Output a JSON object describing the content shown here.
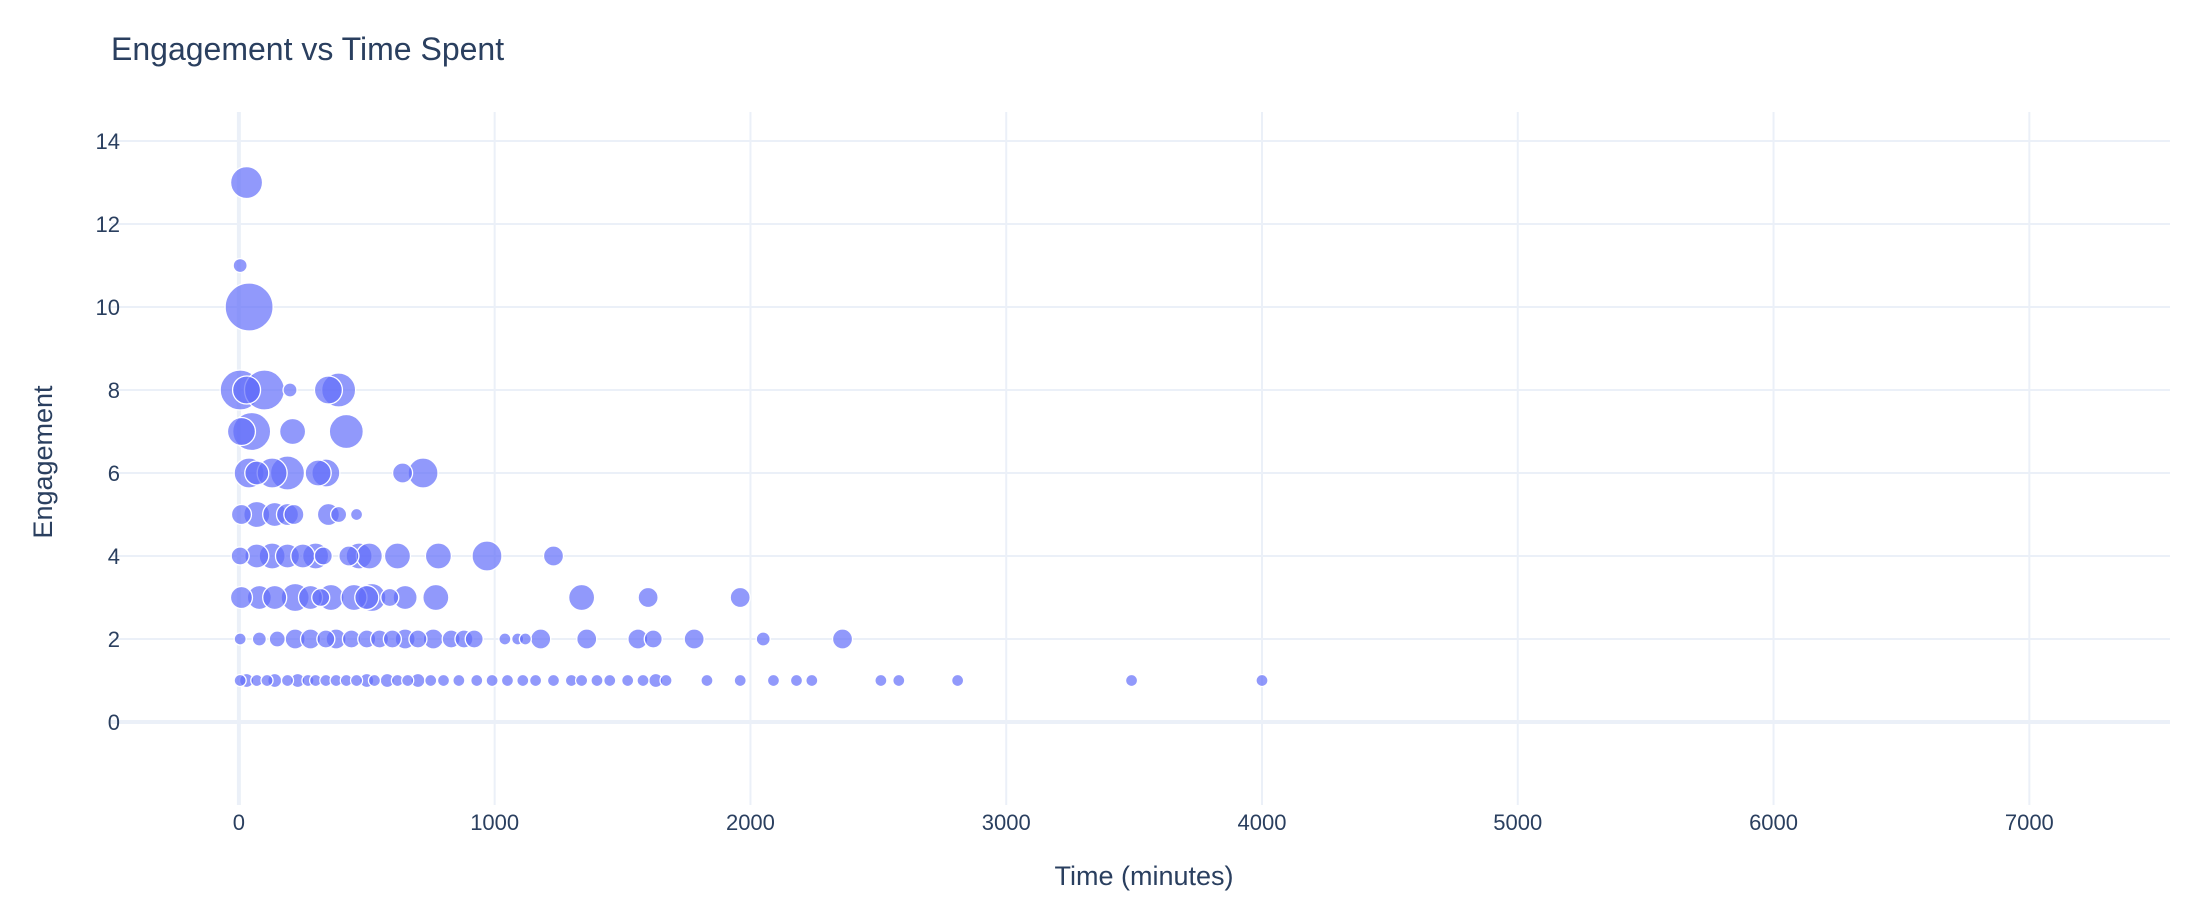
{
  "colors": {
    "marker": "#636efa",
    "grid": "#ebf0f8",
    "text": "#2a3f5f",
    "background": "#ffffff"
  },
  "chart_data": {
    "type": "scatter",
    "variant": "bubble",
    "title": "Engagement vs Time Spent",
    "xlabel": "Time (minutes)",
    "ylabel": "Engagement",
    "xlim": [
      -500,
      7550
    ],
    "ylim": [
      -2,
      14.7
    ],
    "xticks": [
      0,
      1000,
      2000,
      3000,
      4000,
      5000,
      6000,
      7000
    ],
    "yticks": [
      0,
      2,
      4,
      6,
      8,
      10,
      12,
      14
    ],
    "grid": true,
    "legend": "none",
    "points": [
      {
        "x": 30,
        "y": 13,
        "size": 16
      },
      {
        "x": 5,
        "y": 11,
        "size": 7
      },
      {
        "x": 40,
        "y": 10,
        "size": 24
      },
      {
        "x": 5,
        "y": 8,
        "size": 20
      },
      {
        "x": 30,
        "y": 8,
        "size": 14
      },
      {
        "x": 100,
        "y": 8,
        "size": 20
      },
      {
        "x": 200,
        "y": 8,
        "size": 7
      },
      {
        "x": 350,
        "y": 8,
        "size": 14
      },
      {
        "x": 390,
        "y": 8,
        "size": 17
      },
      {
        "x": 10,
        "y": 7,
        "size": 14
      },
      {
        "x": 50,
        "y": 7,
        "size": 19
      },
      {
        "x": 210,
        "y": 7,
        "size": 13
      },
      {
        "x": 420,
        "y": 7,
        "size": 17
      },
      {
        "x": 40,
        "y": 6,
        "size": 15
      },
      {
        "x": 70,
        "y": 6,
        "size": 12
      },
      {
        "x": 130,
        "y": 6,
        "size": 15
      },
      {
        "x": 190,
        "y": 6,
        "size": 17
      },
      {
        "x": 310,
        "y": 6,
        "size": 13
      },
      {
        "x": 340,
        "y": 6,
        "size": 14
      },
      {
        "x": 640,
        "y": 6,
        "size": 10
      },
      {
        "x": 720,
        "y": 6,
        "size": 15
      },
      {
        "x": 10,
        "y": 5,
        "size": 10
      },
      {
        "x": 70,
        "y": 5,
        "size": 13
      },
      {
        "x": 140,
        "y": 5,
        "size": 12
      },
      {
        "x": 190,
        "y": 5,
        "size": 11
      },
      {
        "x": 215,
        "y": 5,
        "size": 10
      },
      {
        "x": 350,
        "y": 5,
        "size": 11
      },
      {
        "x": 390,
        "y": 5,
        "size": 8
      },
      {
        "x": 460,
        "y": 5,
        "size": 6
      },
      {
        "x": 5,
        "y": 4,
        "size": 9
      },
      {
        "x": 70,
        "y": 4,
        "size": 12
      },
      {
        "x": 130,
        "y": 4,
        "size": 13
      },
      {
        "x": 190,
        "y": 4,
        "size": 12
      },
      {
        "x": 250,
        "y": 4,
        "size": 12
      },
      {
        "x": 300,
        "y": 4,
        "size": 13
      },
      {
        "x": 330,
        "y": 4,
        "size": 9
      },
      {
        "x": 430,
        "y": 4,
        "size": 10
      },
      {
        "x": 470,
        "y": 4,
        "size": 13
      },
      {
        "x": 510,
        "y": 4,
        "size": 13
      },
      {
        "x": 620,
        "y": 4,
        "size": 13
      },
      {
        "x": 780,
        "y": 4,
        "size": 13
      },
      {
        "x": 970,
        "y": 4,
        "size": 15
      },
      {
        "x": 1230,
        "y": 4,
        "size": 10
      },
      {
        "x": 10,
        "y": 3,
        "size": 11
      },
      {
        "x": 80,
        "y": 3,
        "size": 12
      },
      {
        "x": 140,
        "y": 3,
        "size": 12
      },
      {
        "x": 220,
        "y": 3,
        "size": 14
      },
      {
        "x": 280,
        "y": 3,
        "size": 12
      },
      {
        "x": 320,
        "y": 3,
        "size": 9
      },
      {
        "x": 360,
        "y": 3,
        "size": 13
      },
      {
        "x": 450,
        "y": 3,
        "size": 13
      },
      {
        "x": 500,
        "y": 3,
        "size": 12
      },
      {
        "x": 520,
        "y": 3,
        "size": 14
      },
      {
        "x": 590,
        "y": 3,
        "size": 9
      },
      {
        "x": 650,
        "y": 3,
        "size": 12
      },
      {
        "x": 770,
        "y": 3,
        "size": 13
      },
      {
        "x": 1340,
        "y": 3,
        "size": 13
      },
      {
        "x": 1600,
        "y": 3,
        "size": 10
      },
      {
        "x": 1960,
        "y": 3,
        "size": 10
      },
      {
        "x": 5,
        "y": 2,
        "size": 6
      },
      {
        "x": 80,
        "y": 2,
        "size": 7
      },
      {
        "x": 150,
        "y": 2,
        "size": 8
      },
      {
        "x": 220,
        "y": 2,
        "size": 10
      },
      {
        "x": 280,
        "y": 2,
        "size": 10
      },
      {
        "x": 340,
        "y": 2,
        "size": 9
      },
      {
        "x": 380,
        "y": 2,
        "size": 10
      },
      {
        "x": 440,
        "y": 2,
        "size": 9
      },
      {
        "x": 500,
        "y": 2,
        "size": 9
      },
      {
        "x": 550,
        "y": 2,
        "size": 9
      },
      {
        "x": 600,
        "y": 2,
        "size": 9
      },
      {
        "x": 650,
        "y": 2,
        "size": 10
      },
      {
        "x": 700,
        "y": 2,
        "size": 9
      },
      {
        "x": 760,
        "y": 2,
        "size": 10
      },
      {
        "x": 830,
        "y": 2,
        "size": 9
      },
      {
        "x": 880,
        "y": 2,
        "size": 9
      },
      {
        "x": 920,
        "y": 2,
        "size": 9
      },
      {
        "x": 1040,
        "y": 2,
        "size": 6
      },
      {
        "x": 1090,
        "y": 2,
        "size": 6
      },
      {
        "x": 1120,
        "y": 2,
        "size": 6
      },
      {
        "x": 1180,
        "y": 2,
        "size": 10
      },
      {
        "x": 1360,
        "y": 2,
        "size": 10
      },
      {
        "x": 1560,
        "y": 2,
        "size": 10
      },
      {
        "x": 1620,
        "y": 2,
        "size": 9
      },
      {
        "x": 1780,
        "y": 2,
        "size": 10
      },
      {
        "x": 2050,
        "y": 2,
        "size": 7
      },
      {
        "x": 2360,
        "y": 2,
        "size": 10
      },
      {
        "x": 5,
        "y": 1,
        "size": 6
      },
      {
        "x": 30,
        "y": 1,
        "size": 7
      },
      {
        "x": 70,
        "y": 1,
        "size": 6
      },
      {
        "x": 110,
        "y": 1,
        "size": 6
      },
      {
        "x": 140,
        "y": 1,
        "size": 7
      },
      {
        "x": 190,
        "y": 1,
        "size": 6
      },
      {
        "x": 230,
        "y": 1,
        "size": 7
      },
      {
        "x": 270,
        "y": 1,
        "size": 6
      },
      {
        "x": 300,
        "y": 1,
        "size": 6
      },
      {
        "x": 340,
        "y": 1,
        "size": 6
      },
      {
        "x": 380,
        "y": 1,
        "size": 6
      },
      {
        "x": 420,
        "y": 1,
        "size": 6
      },
      {
        "x": 460,
        "y": 1,
        "size": 6
      },
      {
        "x": 500,
        "y": 1,
        "size": 7
      },
      {
        "x": 530,
        "y": 1,
        "size": 6
      },
      {
        "x": 580,
        "y": 1,
        "size": 7
      },
      {
        "x": 620,
        "y": 1,
        "size": 6
      },
      {
        "x": 660,
        "y": 1,
        "size": 6
      },
      {
        "x": 700,
        "y": 1,
        "size": 7
      },
      {
        "x": 750,
        "y": 1,
        "size": 6
      },
      {
        "x": 800,
        "y": 1,
        "size": 6
      },
      {
        "x": 860,
        "y": 1,
        "size": 6
      },
      {
        "x": 930,
        "y": 1,
        "size": 6
      },
      {
        "x": 990,
        "y": 1,
        "size": 6
      },
      {
        "x": 1050,
        "y": 1,
        "size": 6
      },
      {
        "x": 1110,
        "y": 1,
        "size": 6
      },
      {
        "x": 1160,
        "y": 1,
        "size": 6
      },
      {
        "x": 1230,
        "y": 1,
        "size": 6
      },
      {
        "x": 1300,
        "y": 1,
        "size": 6
      },
      {
        "x": 1340,
        "y": 1,
        "size": 6
      },
      {
        "x": 1400,
        "y": 1,
        "size": 6
      },
      {
        "x": 1450,
        "y": 1,
        "size": 6
      },
      {
        "x": 1520,
        "y": 1,
        "size": 6
      },
      {
        "x": 1580,
        "y": 1,
        "size": 6
      },
      {
        "x": 1630,
        "y": 1,
        "size": 7
      },
      {
        "x": 1670,
        "y": 1,
        "size": 6
      },
      {
        "x": 1830,
        "y": 1,
        "size": 6
      },
      {
        "x": 1960,
        "y": 1,
        "size": 6
      },
      {
        "x": 2090,
        "y": 1,
        "size": 6
      },
      {
        "x": 2180,
        "y": 1,
        "size": 6
      },
      {
        "x": 2240,
        "y": 1,
        "size": 6
      },
      {
        "x": 2510,
        "y": 1,
        "size": 6
      },
      {
        "x": 2580,
        "y": 1,
        "size": 6
      },
      {
        "x": 2810,
        "y": 1,
        "size": 6
      },
      {
        "x": 3490,
        "y": 1,
        "size": 6
      },
      {
        "x": 4000,
        "y": 1,
        "size": 6
      }
    ]
  }
}
